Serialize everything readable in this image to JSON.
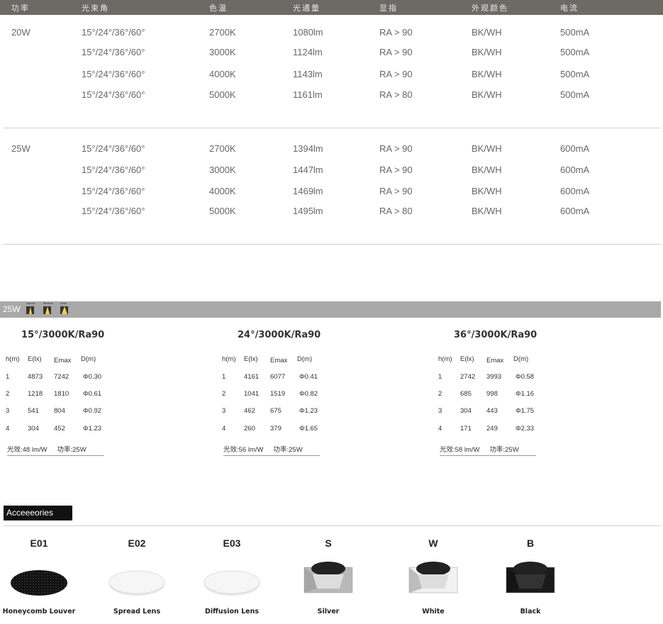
{
  "spec_table": {
    "headers": [
      "功率",
      "光束角",
      "色温",
      "光通量",
      "显指",
      "外观颜色",
      "电流"
    ],
    "groups": [
      {
        "power": "20W",
        "rows": [
          [
            "15°/24°/36°/60°",
            "2700K",
            "1080lm",
            "RA > 90",
            "BK/WH",
            "500mA"
          ],
          [
            "15°/24°/36°/60°",
            "3000K",
            "1124lm",
            "RA > 90",
            "BK/WH",
            "500mA"
          ],
          [
            "15°/24°/36°/60°",
            "4000K",
            "1143lm",
            "RA > 90",
            "BK/WH",
            "500mA"
          ],
          [
            "15°/24°/36°/60°",
            "5000K",
            "1161lm",
            "RA > 80",
            "BK/WH",
            "500mA"
          ]
        ]
      },
      {
        "power": "25W",
        "rows": [
          [
            "15°/24°/36°/60°",
            "2700K",
            "1394lm",
            "RA > 90",
            "BK/WH",
            "600mA"
          ],
          [
            "15°/24°/36°/60°",
            "3000K",
            "1447lm",
            "RA > 90",
            "BK/WH",
            "600mA"
          ],
          [
            "15°/24°/36°/60°",
            "4000K",
            "1469lm",
            "RA > 90",
            "BK/WH",
            "600mA"
          ],
          [
            "15°/24°/36°/60°",
            "5000K",
            "1495lm",
            "RA > 80",
            "BK/WH",
            "600mA"
          ]
        ]
      }
    ]
  },
  "photometric": {
    "bar_label": "25W",
    "beam_icons": [
      {
        "label": "Narrow",
        "icon": "narrow-beam-icon"
      },
      {
        "label": "Medium",
        "icon": "medium-beam-icon"
      },
      {
        "label": "Wide",
        "icon": "wide-beam-icon"
      }
    ],
    "columns": [
      "h(m)",
      "E(lx)",
      "Emax",
      "D(m)"
    ],
    "blocks": [
      {
        "title": "15°/3000K/Ra90",
        "rows": [
          [
            "1",
            "4873",
            "7242",
            "Φ0.30"
          ],
          [
            "2",
            "1218",
            "1810",
            "Φ0.61"
          ],
          [
            "3",
            "541",
            "804",
            "Φ0.92"
          ],
          [
            "4",
            "304",
            "452",
            "Φ1.23"
          ]
        ],
        "efficacy": "光效:48 lm/W",
        "power": "功率:25W"
      },
      {
        "title": "24°/3000K/Ra90",
        "rows": [
          [
            "1",
            "4161",
            "6077",
            "Φ0.41"
          ],
          [
            "2",
            "1041",
            "1519",
            "Φ0.82"
          ],
          [
            "3",
            "462",
            "675",
            "Φ1.23"
          ],
          [
            "4",
            "260",
            "379",
            "Φ1.65"
          ]
        ],
        "efficacy": "光效:56 lm/W",
        "power": "功率:25W"
      },
      {
        "title": "36°/3000K/Ra90",
        "rows": [
          [
            "1",
            "2742",
            "3993",
            "Φ0.58"
          ],
          [
            "2",
            "685",
            "998",
            "Φ1.16"
          ],
          [
            "3",
            "304",
            "443",
            "Φ1.75"
          ],
          [
            "4",
            "171",
            "249",
            "Φ2.33"
          ]
        ],
        "efficacy": "光效:58 lm/W",
        "power": "功率:25W"
      }
    ]
  },
  "accessories": {
    "title": "Acceeeories",
    "items": [
      {
        "code": "E01",
        "name": "Honeycomb Louver",
        "image": "honeycomb"
      },
      {
        "code": "E02",
        "name": "Spread Lens",
        "image": "lens"
      },
      {
        "code": "E03",
        "name": "Diffusion Lens",
        "image": "lens"
      },
      {
        "code": "S",
        "name": "Silver",
        "image": "trim",
        "color": "#b8b8b8"
      },
      {
        "code": "W",
        "name": "White",
        "image": "trim",
        "color": "#f2f2f2"
      },
      {
        "code": "B",
        "name": "Black",
        "image": "trim",
        "color": "#1a1a1a"
      }
    ]
  }
}
